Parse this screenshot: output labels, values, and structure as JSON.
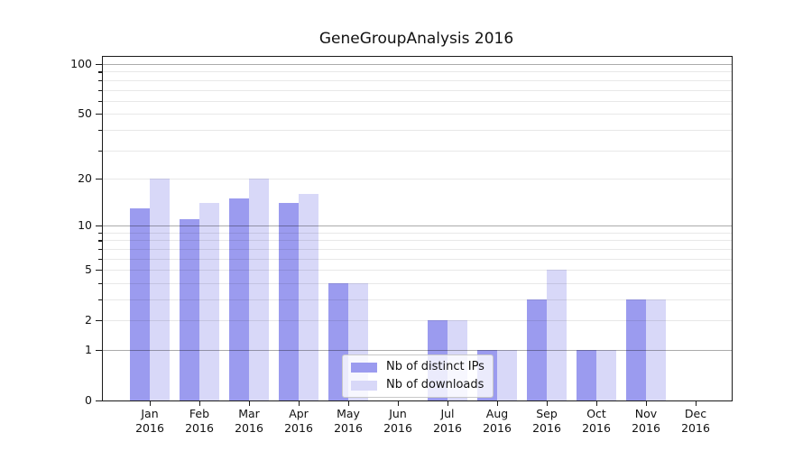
{
  "chart_data": {
    "type": "bar",
    "title": "GeneGroupAnalysis 2016",
    "categories": [
      "Jan",
      "Feb",
      "Mar",
      "Apr",
      "May",
      "Jun",
      "Jul",
      "Aug",
      "Sep",
      "Oct",
      "Nov",
      "Dec"
    ],
    "year_label": "2016",
    "series": [
      {
        "name": "Nb of distinct IPs",
        "color": "#9b9bef",
        "values": [
          13,
          11,
          15,
          14,
          4,
          0,
          2,
          1,
          3,
          1,
          3,
          0
        ]
      },
      {
        "name": "Nb of downloads",
        "color": "#d8d8f8",
        "values": [
          20,
          14,
          20,
          16,
          4,
          0,
          2,
          1,
          5,
          1,
          3,
          0
        ]
      }
    ],
    "xlabel": "",
    "ylabel": "",
    "yscale": "log(1+x)",
    "ylim": [
      0,
      110
    ],
    "ytick_values": [
      0,
      1,
      2,
      5,
      10,
      20,
      50,
      100
    ],
    "yticks_minor": [
      3,
      4,
      6,
      7,
      8,
      9,
      30,
      40,
      60,
      70,
      80,
      90
    ],
    "grid_major": [
      1,
      10,
      100
    ],
    "grid": "horizontal",
    "legend_position": "lower center"
  }
}
